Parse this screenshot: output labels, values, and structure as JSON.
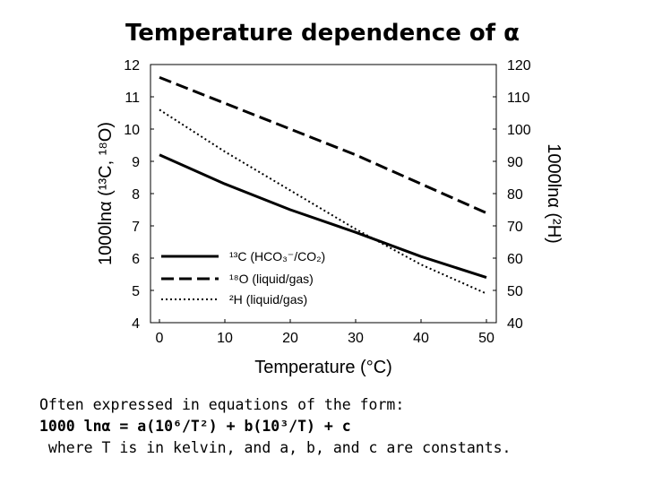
{
  "slide": {
    "title": "Temperature dependence of α",
    "notes": [
      "Often expressed in equations of the form:",
      "1000 lnα = a(10⁶/T²) + b(10³/T) + c",
      " where T is in kelvin, and a, b, and c are constants."
    ]
  },
  "chart_data": {
    "type": "line",
    "xlabel": "Temperature (°C)",
    "ylabel_left": "1000lnα (¹³C, ¹⁸O)",
    "ylabel_right": "1000lnα (²H)",
    "xlim": [
      0,
      50
    ],
    "ylim_left": [
      4,
      12
    ],
    "ylim_right": [
      40,
      120
    ],
    "x_ticks": [
      0,
      10,
      20,
      30,
      40,
      50
    ],
    "y_ticks_left": [
      4,
      5,
      6,
      7,
      8,
      9,
      10,
      11,
      12
    ],
    "y_ticks_right": [
      40,
      50,
      60,
      70,
      80,
      90,
      100,
      110,
      120
    ],
    "grid": false,
    "legend_position": "lower-left",
    "series": [
      {
        "name": "¹³C (HCO₃⁻/CO₂)",
        "axis": "left",
        "style": "solid",
        "color": "#000000",
        "x": [
          0,
          10,
          20,
          30,
          40,
          50
        ],
        "y": [
          9.2,
          8.3,
          7.5,
          6.8,
          6.05,
          5.4
        ]
      },
      {
        "name": "¹⁸O (liquid/gas)",
        "axis": "left",
        "style": "dashed",
        "color": "#000000",
        "x": [
          0,
          10,
          20,
          30,
          40,
          50
        ],
        "y": [
          11.6,
          10.8,
          10.0,
          9.2,
          8.3,
          7.4
        ]
      },
      {
        "name": "²H (liquid/gas)",
        "axis": "right",
        "style": "dotted",
        "color": "#000000",
        "x": [
          0,
          10,
          20,
          30,
          40,
          50
        ],
        "y": [
          106,
          93,
          81,
          69,
          58,
          49
        ]
      }
    ]
  }
}
